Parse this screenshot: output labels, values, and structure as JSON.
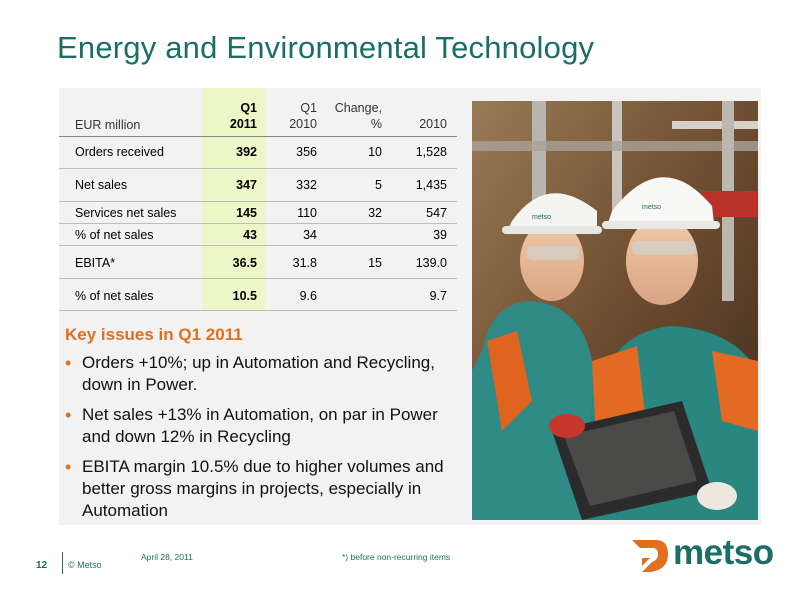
{
  "title": "Energy and Environmental Technology",
  "table": {
    "headers": {
      "label": "EUR  million",
      "q1_2011": [
        "Q1",
        "2011"
      ],
      "q1_2010": [
        "Q1",
        "2010"
      ],
      "change": [
        "Change,",
        "%"
      ],
      "y2010": [
        "",
        "2010"
      ]
    },
    "rows": [
      {
        "label": "Orders received",
        "q1_2011": "392",
        "q1_2010": "356",
        "change": "10",
        "y2010": "1,528"
      },
      {
        "label": "Net sales",
        "q1_2011": "347",
        "q1_2010": "332",
        "change": "5",
        "y2010": "1,435"
      },
      {
        "label": "Services net sales",
        "q1_2011": "145",
        "q1_2010": "110",
        "change": "32",
        "y2010": "547"
      },
      {
        "label": "% of net sales",
        "q1_2011": "43",
        "q1_2010": "34",
        "change": "",
        "y2010": "39"
      },
      {
        "label": "EBITA*",
        "q1_2011": "36.5",
        "q1_2010": "31.8",
        "change": "15",
        "y2010": "139.0"
      },
      {
        "label": "% of net sales",
        "q1_2011": "10.5",
        "q1_2010": "9.6",
        "change": "",
        "y2010": "9.7"
      }
    ]
  },
  "key_issues": {
    "title": "Key issues in Q1 2011",
    "bullets": [
      "Orders +10%; up in Automation and Recycling, down in Power.",
      "Net sales +13% in Automation, on par in Power and down 12% in Recycling",
      "EBITA margin 10.5% due to higher volumes and better gross margins in projects, especially in Automation"
    ]
  },
  "footer": {
    "page_number": "12",
    "copyright": "© Metso",
    "date": "April 28, 2011",
    "note": "*) before non-recurring items",
    "logo_text": "metso"
  },
  "photo_helmet_text": "metso",
  "colors": {
    "brand_teal": "#1a6e66",
    "accent_orange": "#e07020",
    "highlight_green": "#ecf6c6"
  }
}
